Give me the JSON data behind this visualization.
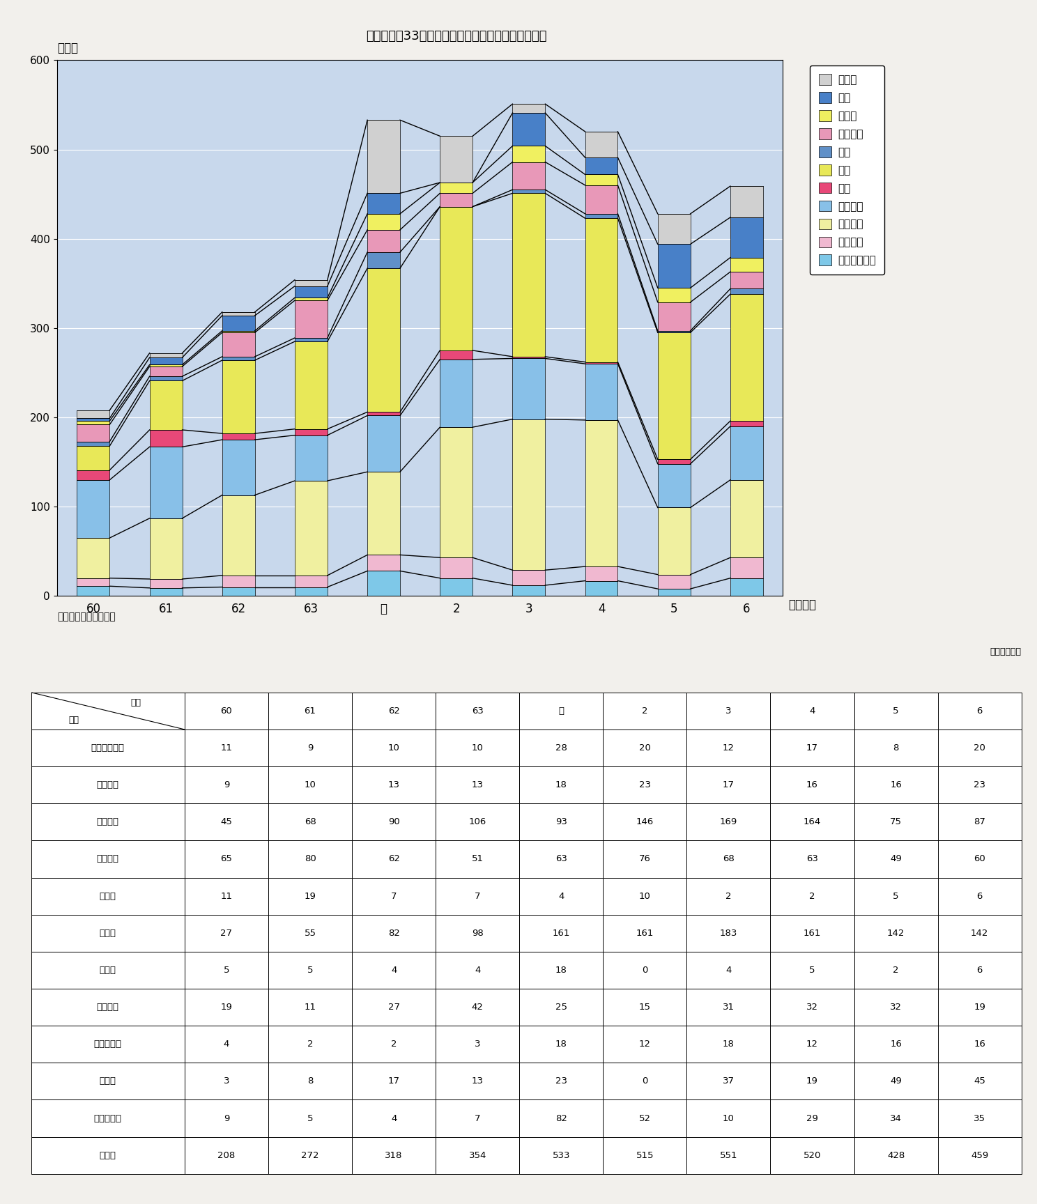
{
  "title": "第１－１－33図　重要無線通信妨害申告件数の推移",
  "years": [
    "60",
    "61",
    "62",
    "63",
    "元",
    "2",
    "3",
    "4",
    "5",
    "6"
  ],
  "xlabel": "（年度）",
  "ylabel": "（件）",
  "source": "郵政省資料により作成",
  "unit_label": "（単位：件）",
  "stack_order": [
    "電気通信業務",
    "放送業務",
    "航空関係",
    "海上関係",
    "警察",
    "消防",
    "防衛",
    "防災行政",
    "官公庁",
    "鉄道",
    "その他"
  ],
  "legend_order": [
    "その他",
    "鉄道",
    "官公庁",
    "防災行政",
    "防衛",
    "消防",
    "警察",
    "海上関係",
    "航空関係",
    "放送業務",
    "電気通信業務"
  ],
  "colors": {
    "電気通信業務": "#7ec8e8",
    "放送業務": "#f0b8d0",
    "航空関係": "#f0f0a0",
    "海上関係": "#88c0e8",
    "警察": "#e84878",
    "消防": "#e8e858",
    "防衛": "#6090c8",
    "防災行政": "#e898b8",
    "官公庁": "#f0f060",
    "鉄道": "#4880c8",
    "その他": "#d0d0d0"
  },
  "data": {
    "電気通信業務": [
      11,
      9,
      10,
      10,
      28,
      20,
      12,
      17,
      8,
      20
    ],
    "放送業務": [
      9,
      10,
      13,
      13,
      18,
      23,
      17,
      16,
      16,
      23
    ],
    "航空関係": [
      45,
      68,
      90,
      106,
      93,
      146,
      169,
      164,
      75,
      87
    ],
    "海上関係": [
      65,
      80,
      62,
      51,
      63,
      76,
      68,
      63,
      49,
      60
    ],
    "警察": [
      11,
      19,
      7,
      7,
      4,
      10,
      2,
      2,
      5,
      6
    ],
    "消防": [
      27,
      55,
      82,
      98,
      161,
      161,
      183,
      161,
      142,
      142
    ],
    "防衛": [
      5,
      5,
      4,
      4,
      18,
      0,
      4,
      5,
      2,
      6
    ],
    "防災行政": [
      19,
      11,
      27,
      42,
      25,
      15,
      31,
      32,
      32,
      19
    ],
    "官公庁": [
      4,
      2,
      2,
      3,
      18,
      12,
      18,
      12,
      16,
      16
    ],
    "鉄道": [
      3,
      8,
      17,
      13,
      23,
      0,
      37,
      19,
      49,
      45
    ],
    "その他": [
      9,
      5,
      4,
      7,
      82,
      52,
      10,
      29,
      34,
      35
    ]
  },
  "totals": [
    208,
    272,
    318,
    354,
    533,
    515,
    551,
    520,
    428,
    459
  ],
  "row_labels_disp": [
    "電気通信業務",
    "放送業務",
    "航空関係",
    "海上関係",
    "警　察",
    "消　防",
    "防　衛",
    "防災行政",
    "官　公　庁",
    "鉄　道",
    "そ　の　他",
    "合　計"
  ],
  "ylim": [
    0,
    600
  ],
  "yticks": [
    0,
    100,
    200,
    300,
    400,
    500,
    600
  ],
  "plot_bg_color": "#c8d8ec",
  "fig_bg_color": "#f2f0ec",
  "bar_width": 0.45
}
